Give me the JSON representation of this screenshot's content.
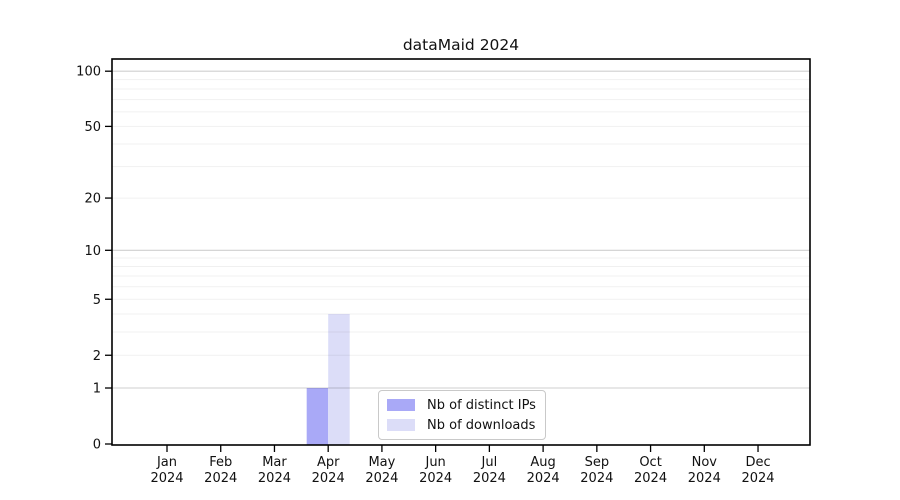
{
  "chart_data": {
    "type": "bar",
    "title": "dataMaid 2024",
    "xlabel": "",
    "ylabel": "",
    "months": [
      "Jan",
      "Feb",
      "Mar",
      "Apr",
      "May",
      "Jun",
      "Jul",
      "Aug",
      "Sep",
      "Oct",
      "Nov",
      "Dec"
    ],
    "year_label": "2024",
    "categories": [
      "Jan 2024",
      "Feb 2024",
      "Mar 2024",
      "Apr 2024",
      "May 2024",
      "Jun 2024",
      "Jul 2024",
      "Aug 2024",
      "Sep 2024",
      "Oct 2024",
      "Nov 2024",
      "Dec 2024"
    ],
    "series": [
      {
        "name": "Nb of distinct IPs",
        "color": "#a9a9f7",
        "values": [
          0,
          0,
          0,
          1,
          0,
          0,
          0,
          0,
          0,
          0,
          0,
          0
        ]
      },
      {
        "name": "Nb of downloads",
        "color": "#dcddf8",
        "values": [
          0,
          0,
          0,
          4,
          0,
          0,
          0,
          0,
          0,
          0,
          0,
          0
        ]
      }
    ],
    "y_scale": "log10(1+x)",
    "y_ticks": [
      0,
      1,
      2,
      5,
      10,
      20,
      50,
      100
    ],
    "y_tick_labels": [
      "0",
      "1",
      "2",
      "5",
      "10",
      "20",
      "50",
      "100"
    ],
    "gridlines": {
      "major": [
        1,
        10,
        100
      ],
      "minor": [
        2,
        3,
        4,
        5,
        6,
        7,
        8,
        9,
        20,
        30,
        40,
        50,
        60,
        70,
        80,
        90
      ]
    },
    "ylim": [
      0,
      117
    ],
    "legend_position": "lower center (inside plot)",
    "grid": "horizontal only"
  },
  "colors": {
    "background": "#ffffff",
    "frame": "#000000",
    "major_gridline": "#cfcfcf",
    "minor_gridline": "#f0f0f0",
    "tick_text": "#111111",
    "legend_border": "#c9c9c9"
  }
}
